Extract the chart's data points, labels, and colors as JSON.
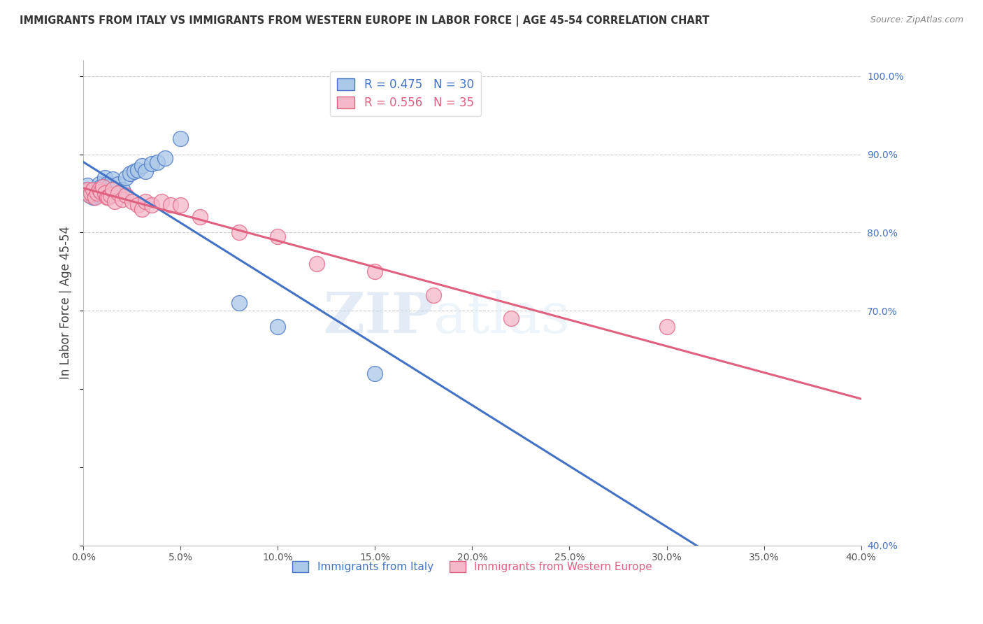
{
  "title": "IMMIGRANTS FROM ITALY VS IMMIGRANTS FROM WESTERN EUROPE IN LABOR FORCE | AGE 45-54 CORRELATION CHART",
  "source": "Source: ZipAtlas.com",
  "ylabel": "In Labor Force | Age 45-54",
  "xlim": [
    0.0,
    0.4
  ],
  "ylim": [
    0.4,
    1.02
  ],
  "xticks": [
    0.0,
    0.05,
    0.1,
    0.15,
    0.2,
    0.25,
    0.3,
    0.35,
    0.4
  ],
  "right_ytick_vals": [
    1.0,
    0.9,
    0.8,
    0.7,
    0.4
  ],
  "right_ytick_labels": [
    "100.0%",
    "90.0%",
    "80.0%",
    "70.0%",
    "40.0%"
  ],
  "italy_color": "#aac8e8",
  "western_color": "#f5b8c8",
  "italy_R": 0.475,
  "italy_N": 30,
  "western_R": 0.556,
  "western_N": 35,
  "watermark_text": "ZIPatlas",
  "italy_x": [
    0.001,
    0.002,
    0.003,
    0.004,
    0.005,
    0.006,
    0.007,
    0.008,
    0.009,
    0.01,
    0.011,
    0.012,
    0.013,
    0.015,
    0.016,
    0.018,
    0.02,
    0.022,
    0.024,
    0.026,
    0.028,
    0.03,
    0.032,
    0.035,
    0.038,
    0.042,
    0.05,
    0.08,
    0.1,
    0.15
  ],
  "italy_y": [
    0.855,
    0.86,
    0.848,
    0.852,
    0.845,
    0.85,
    0.848,
    0.862,
    0.858,
    0.855,
    0.87,
    0.862,
    0.858,
    0.868,
    0.855,
    0.862,
    0.855,
    0.87,
    0.875,
    0.878,
    0.88,
    0.885,
    0.878,
    0.888,
    0.89,
    0.895,
    0.92,
    0.71,
    0.68,
    0.62
  ],
  "western_x": [
    0.001,
    0.002,
    0.003,
    0.004,
    0.005,
    0.006,
    0.007,
    0.008,
    0.009,
    0.01,
    0.011,
    0.012,
    0.013,
    0.014,
    0.015,
    0.016,
    0.018,
    0.02,
    0.022,
    0.025,
    0.028,
    0.03,
    0.032,
    0.035,
    0.04,
    0.045,
    0.05,
    0.06,
    0.08,
    0.1,
    0.12,
    0.15,
    0.18,
    0.22,
    0.3
  ],
  "western_y": [
    0.852,
    0.855,
    0.848,
    0.85,
    0.855,
    0.845,
    0.85,
    0.855,
    0.852,
    0.858,
    0.85,
    0.845,
    0.845,
    0.848,
    0.855,
    0.84,
    0.85,
    0.842,
    0.848,
    0.84,
    0.835,
    0.83,
    0.84,
    0.835,
    0.84,
    0.835,
    0.835,
    0.82,
    0.8,
    0.795,
    0.76,
    0.75,
    0.72,
    0.69,
    0.68
  ],
  "line_color_italy": "#4472c4",
  "line_color_western": "#e06080",
  "grid_color": "#cccccc",
  "title_color": "#333333",
  "right_tick_color": "#4472c4",
  "legend_text_italy": "#4472c4",
  "legend_text_western": "#e06080"
}
